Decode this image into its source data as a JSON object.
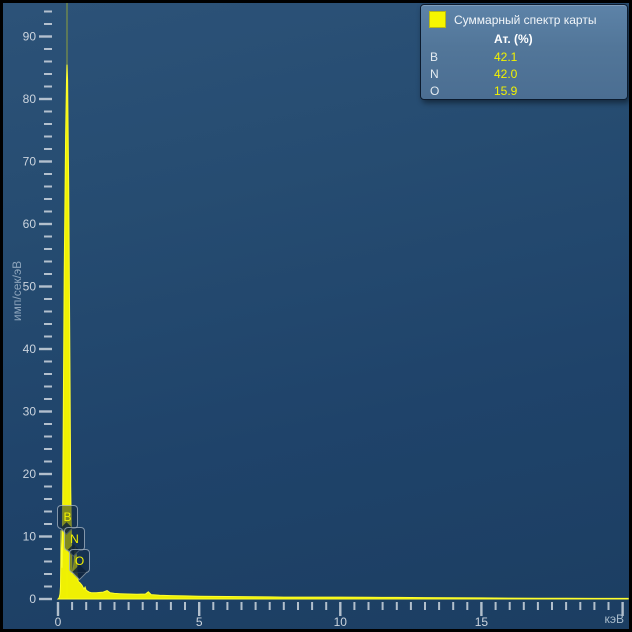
{
  "axes": {
    "y_unit": "имп/сек/эВ",
    "x_unit": "кэВ"
  },
  "legend": {
    "title": "Суммарный спектр карты",
    "swatch_color": "#f6f600",
    "header": "Ат. (%)",
    "rows": [
      {
        "element": "B",
        "value": "42.1"
      },
      {
        "element": "N",
        "value": "42.0"
      },
      {
        "element": "O",
        "value": "15.9"
      }
    ]
  },
  "colors": {
    "spectrum": "#f6f600",
    "background_top": "#2c5278",
    "background_bottom": "#1c3e62",
    "tick": "#c3cdd8",
    "tick_label": "#cbd4de"
  },
  "chart_data": {
    "type": "area",
    "title": "Суммарный спектр карты",
    "xlabel": "кэВ",
    "ylabel": "имп/сек/эВ",
    "xlim": [
      0,
      20.2
    ],
    "ylim": [
      0,
      95
    ],
    "x_labeled_ticks": [
      0,
      5,
      10,
      15
    ],
    "x_tick_step_minor": 0.5,
    "x_max_tick": 20,
    "x_major_step": 5,
    "y_major_ticks": [
      0,
      10,
      20,
      30,
      40,
      50,
      60,
      70,
      80,
      90
    ],
    "y_tick_step_minor": 2,
    "y_minor_max": 94,
    "grid": false,
    "legend_position": "top-right",
    "marker_line_kev": 0.32,
    "annotations": [
      {
        "symbol": "B",
        "kev": 0.183
      },
      {
        "symbol": "N",
        "kev": 0.392
      },
      {
        "symbol": "O",
        "kev": 0.525
      }
    ],
    "series": [
      {
        "name": "Суммарный спектр карты",
        "color": "#f6f600",
        "points": [
          [
            0,
            0
          ],
          [
            0.04,
            0.2
          ],
          [
            0.07,
            0.8
          ],
          [
            0.09,
            2
          ],
          [
            0.1,
            6
          ],
          [
            0.11,
            11
          ],
          [
            0.12,
            7
          ],
          [
            0.14,
            5
          ],
          [
            0.16,
            10
          ],
          [
            0.18,
            25
          ],
          [
            0.22,
            52
          ],
          [
            0.27,
            74
          ],
          [
            0.3,
            83
          ],
          [
            0.32,
            85.5
          ],
          [
            0.34,
            83
          ],
          [
            0.38,
            66
          ],
          [
            0.42,
            38
          ],
          [
            0.45,
            18
          ],
          [
            0.48,
            8
          ],
          [
            0.5,
            4
          ],
          [
            0.53,
            4.5
          ],
          [
            0.57,
            6
          ],
          [
            0.6,
            8
          ],
          [
            0.62,
            8.4
          ],
          [
            0.64,
            7.5
          ],
          [
            0.68,
            4
          ],
          [
            0.72,
            2.8
          ],
          [
            0.78,
            2.6
          ],
          [
            0.85,
            2.2
          ],
          [
            0.92,
            1.6
          ],
          [
            0.96,
            1.9
          ],
          [
            1.0,
            1.4
          ],
          [
            1.1,
            1.1
          ],
          [
            1.2,
            1.0
          ],
          [
            1.35,
            1.0
          ],
          [
            1.5,
            1.05
          ],
          [
            1.6,
            1.1
          ],
          [
            1.74,
            1.35
          ],
          [
            1.85,
            1.0
          ],
          [
            2.0,
            0.9
          ],
          [
            2.2,
            0.85
          ],
          [
            2.5,
            0.8
          ],
          [
            2.8,
            0.75
          ],
          [
            3.1,
            0.8
          ],
          [
            3.2,
            1.15
          ],
          [
            3.3,
            0.7
          ],
          [
            3.6,
            0.6
          ],
          [
            4.0,
            0.55
          ],
          [
            4.5,
            0.5
          ],
          [
            5.0,
            0.45
          ],
          [
            5.5,
            0.42
          ],
          [
            6.0,
            0.4
          ],
          [
            6.5,
            0.38
          ],
          [
            7.0,
            0.35
          ],
          [
            7.5,
            0.33
          ],
          [
            8.0,
            0.3
          ],
          [
            9.0,
            0.3
          ],
          [
            10.0,
            0.3
          ],
          [
            11.0,
            0.27
          ],
          [
            12.0,
            0.25
          ],
          [
            13.0,
            0.22
          ],
          [
            14.0,
            0.2
          ],
          [
            15.0,
            0.17
          ],
          [
            16.0,
            0.15
          ],
          [
            17.0,
            0.13
          ],
          [
            18.0,
            0.12
          ],
          [
            19.0,
            0.1
          ],
          [
            20.2,
            0.1
          ]
        ]
      }
    ]
  }
}
